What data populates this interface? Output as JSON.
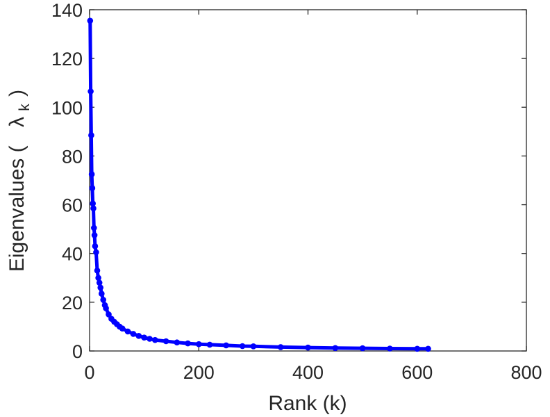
{
  "chart_data": {
    "type": "line",
    "title": "",
    "xlabel": "Rank (k)",
    "ylabel_main": "Eigenvalues (",
    "ylabel_symbol": "λ",
    "ylabel_subscript": "k",
    "ylabel_close": ")",
    "xlim": [
      0,
      800
    ],
    "ylim": [
      0,
      140
    ],
    "xticks": [
      "0",
      "200",
      "400",
      "600",
      "800"
    ],
    "yticks": [
      "0",
      "20",
      "40",
      "60",
      "80",
      "100",
      "120",
      "140"
    ],
    "grid": false,
    "legend": false,
    "marker": "circle",
    "color": "#0000ff",
    "series": [
      {
        "x": [
          1,
          2,
          3,
          4,
          5,
          6,
          7,
          8,
          9,
          10,
          12,
          14,
          16,
          18,
          20,
          22,
          25,
          28,
          30,
          35,
          40,
          45,
          50,
          55,
          60,
          70,
          80,
          90,
          100,
          110,
          120,
          140,
          160,
          180,
          200,
          220,
          250,
          280,
          300,
          350,
          400,
          450,
          500,
          550,
          600,
          620
        ],
        "y": [
          135.5,
          106.5,
          88.5,
          72.5,
          66.8,
          60.5,
          58.5,
          50.5,
          47.5,
          43,
          40.5,
          33,
          30,
          28,
          26,
          23.5,
          21,
          18.8,
          17.5,
          15,
          13.2,
          12,
          11,
          10,
          9.2,
          8,
          7,
          6.2,
          5.5,
          5,
          4.5,
          4,
          3.5,
          3.1,
          2.8,
          2.6,
          2.3,
          2.0,
          1.9,
          1.6,
          1.4,
          1.2,
          1.1,
          1.0,
          0.9,
          0.9
        ]
      }
    ]
  }
}
